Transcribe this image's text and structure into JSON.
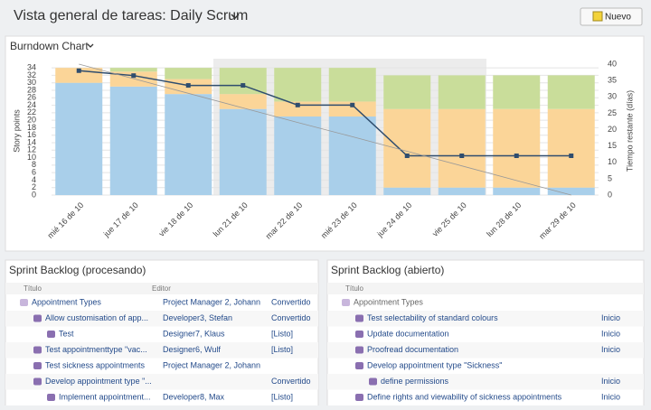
{
  "header": {
    "title": "Vista general de tareas: Daily Scrum",
    "button": "Nuevo"
  },
  "chart_data": {
    "type": "bar",
    "stacked": true,
    "title": "Burndown Chart",
    "ylabel": "Story points",
    "y2label": "Tiempo restante (días)",
    "categories": [
      "mié 16 de 10",
      "jue 17 de 10",
      "vie 18 de 10",
      "lun 21 de 10",
      "mar 22 de 10",
      "mié 23 de 10",
      "jue 24 de 10",
      "vie 25 de 10",
      "lun 28 de 10",
      "mar 29 de 10"
    ],
    "series": [
      {
        "color": "#a9cfea",
        "values": [
          30,
          29,
          27,
          23,
          21,
          21,
          2,
          2,
          2,
          2
        ]
      },
      {
        "color": "#fbd598",
        "values": [
          4,
          4,
          4,
          4,
          4,
          4,
          21,
          21,
          21,
          21
        ]
      },
      {
        "color": "#c9dd9a",
        "values": [
          0,
          1,
          3,
          7,
          9,
          9,
          9,
          9,
          9,
          9
        ]
      },
      {
        "type": "line",
        "axis": "y2",
        "color": "#2f4d6e",
        "marker": true,
        "values": [
          38,
          36.5,
          33.5,
          33.5,
          27.5,
          27.5,
          12,
          12,
          12,
          12
        ]
      },
      {
        "type": "line",
        "color": "#999999",
        "values": [
          35,
          31.1,
          27.2,
          23.3,
          19.4,
          15.6,
          11.7,
          7.8,
          3.9,
          0
        ]
      }
    ],
    "ylim": [
      0,
      35
    ],
    "yticks": [
      0,
      2,
      4,
      6,
      8,
      10,
      12,
      14,
      16,
      18,
      20,
      22,
      24,
      26,
      28,
      30,
      32,
      34
    ],
    "y2lim": [
      0,
      40
    ],
    "y2ticks": [
      0,
      5,
      10,
      15,
      20,
      25,
      30,
      35,
      40
    ],
    "grid": true
  },
  "backlog_processing": {
    "title": "Sprint Backlog (procesando)",
    "columns": [
      "Título",
      "Editor"
    ],
    "rows": [
      {
        "level": 0,
        "title": "Appointment Types",
        "editor": "Project Manager 2, Johann",
        "status": "Convertido"
      },
      {
        "level": 1,
        "title": "Allow customisation of app...",
        "editor": "Developer3, Stefan",
        "status": "Convertido"
      },
      {
        "level": 2,
        "title": "Test",
        "editor": "Designer7, Klaus",
        "status": "[Listo]"
      },
      {
        "level": 1,
        "title": "Test appointmenttype \"vac...",
        "editor": "Designer6, Wulf",
        "status": "[Listo]"
      },
      {
        "level": 1,
        "title": "Test sickness appointments",
        "editor": "Project Manager 2, Johann"
      },
      {
        "level": 1,
        "title": "Develop appointment type \"...",
        "status": "Convertido"
      },
      {
        "level": 2,
        "title": "Implement appointment...",
        "editor": "Developer8, Max",
        "status": "[Listo]"
      }
    ]
  },
  "backlog_open": {
    "title": "Sprint Backlog (abierto)",
    "columns": [
      "Título"
    ],
    "rows": [
      {
        "level": 0,
        "title": "Appointment Types"
      },
      {
        "level": 1,
        "title": "Test selectability of standard colours",
        "status": "Inicio"
      },
      {
        "level": 1,
        "title": "Update documentation",
        "status": "Inicio"
      },
      {
        "level": 1,
        "title": "Proofread documentation",
        "status": "Inicio"
      },
      {
        "level": 1,
        "title": "Develop appointment type \"Sickness\""
      },
      {
        "level": 2,
        "title": "define permissions",
        "status": "Inicio"
      },
      {
        "level": 1,
        "title": "Define rights and viewability of sickness appointments",
        "status": "Inicio"
      }
    ]
  }
}
